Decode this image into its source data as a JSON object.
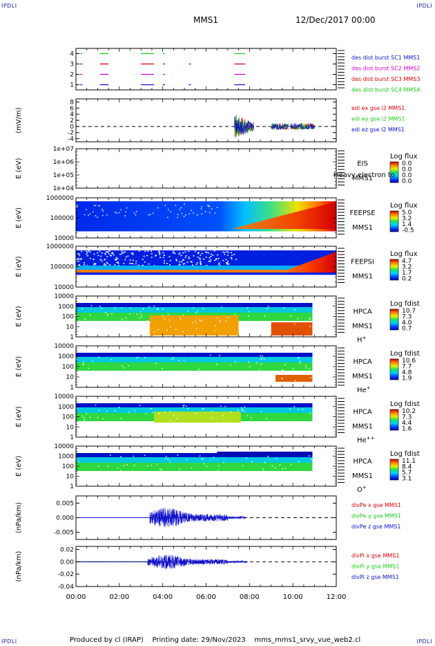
{
  "header": {
    "corner_tl": "IPDLI",
    "corner_tr": "IPDLI",
    "corner_bl": "IPDLI",
    "corner_br": "IPDLI",
    "mission": "MMS1",
    "datetime": "12/Dec/2017 00:00"
  },
  "footer": {
    "produced_by": "Produced by cl (IRAP)",
    "printing_date": "Printing date: 29/Nov/2023",
    "filename": "mms_mms1_srvy_vue_web2.cl"
  },
  "colors": {
    "red": "#d40000",
    "green": "#19c819",
    "blue": "#1010c8",
    "magenta": "#d200d2",
    "black": "#000000"
  },
  "chart_data": [
    {
      "type": "line",
      "panel": "burst",
      "yticks": [
        "4",
        "3",
        "2",
        "1"
      ],
      "ylim": [
        0.5,
        4.5
      ],
      "legend": [
        "des dist burst SC1 MMS1",
        "des dist burst SC2 MMS2",
        "des dist burst SC3 MMS3",
        "des dist burst SC4 MMS4"
      ],
      "legend_colors": [
        "blue",
        "magenta",
        "red",
        "green"
      ],
      "series": [
        {
          "level": 4,
          "color": "green",
          "segments": [
            [
              0.2,
              0.3
            ],
            [
              1.1,
              1.5
            ],
            [
              3.0,
              3.6
            ],
            [
              4.0,
              4.1
            ],
            [
              7.3,
              7.8
            ]
          ]
        },
        {
          "level": 3,
          "color": "red",
          "segments": [
            [
              0.2,
              0.3
            ],
            [
              1.1,
              1.5
            ],
            [
              3.0,
              3.6
            ],
            [
              4.0,
              4.1
            ],
            [
              5.2,
              5.3
            ],
            [
              7.3,
              7.8
            ]
          ]
        },
        {
          "level": 2,
          "color": "magenta",
          "segments": [
            [
              0.2,
              0.3
            ],
            [
              1.1,
              1.5
            ],
            [
              3.0,
              3.6
            ],
            [
              4.0,
              4.1
            ],
            [
              7.3,
              7.8
            ]
          ]
        },
        {
          "level": 1,
          "color": "blue",
          "segments": [
            [
              0.2,
              0.3
            ],
            [
              1.1,
              1.5
            ],
            [
              3.0,
              3.6
            ],
            [
              4.0,
              4.1
            ],
            [
              5.2,
              5.3
            ],
            [
              7.3,
              7.8
            ]
          ]
        }
      ]
    },
    {
      "type": "line",
      "panel": "edi",
      "ylabel": "(mV/m)",
      "yticks": [
        "8",
        "6",
        "4",
        "2",
        "0",
        "-2",
        "-4"
      ],
      "ylim": [
        -5,
        9
      ],
      "legend": [
        "edi ex gse l2 MMS1",
        "edi ey gse l2 MMS1",
        "edi ez gse l2 MMS1"
      ],
      "legend_colors": [
        "red",
        "green",
        "blue"
      ],
      "zero_line": true,
      "active_ranges": [
        [
          7.3,
          8.2
        ],
        [
          9.0,
          9.8
        ],
        [
          9.9,
          11.0
        ]
      ]
    },
    {
      "type": "heatmap",
      "panel": "EIS",
      "ylabel": "E (eV)",
      "yticks": [
        "1e+07",
        "1e+06",
        "1e+05",
        "1e+04"
      ],
      "side_label": "EIS",
      "side_sub": "MMS1",
      "overlay_text": "Heavy electron to",
      "colorbar_title": "Log flux",
      "colorbar_ticks": [
        "0.0",
        "0.0",
        "0.0",
        "0.0"
      ],
      "empty": true
    },
    {
      "type": "heatmap",
      "panel": "FEEPSE",
      "ylabel": "E (eV)",
      "yticks": [
        "1000000",
        "100000",
        "10000"
      ],
      "side_label": "FEEPSE",
      "side_sub": "MMS1",
      "colorbar_title": "Log flux",
      "colorbar_ticks": [
        "5.0",
        "3.2",
        "1.4",
        "-0.5"
      ],
      "data_time_range": [
        0,
        12
      ]
    },
    {
      "type": "heatmap",
      "panel": "FEEPSI",
      "ylabel": "E (eV)",
      "yticks": [
        "1000000",
        "100000",
        "10000"
      ],
      "side_label": "FEEPSI",
      "side_sub": "MMS1",
      "colorbar_title": "Log flux",
      "colorbar_ticks": [
        "4.7",
        "3.2",
        "1.7",
        "0.2"
      ],
      "data_time_range": [
        0,
        12
      ]
    },
    {
      "type": "heatmap",
      "panel": "HPCA H+",
      "ylabel": "E (eV)",
      "yticks": [
        "10000",
        "1000",
        "100",
        "10",
        "1"
      ],
      "side_label": "HPCA",
      "side_sub": "MMS1",
      "species": "H",
      "species_sup": "+",
      "colorbar_title": "Log fdist",
      "colorbar_ticks": [
        "10.7",
        "7.3",
        "4.0",
        "0.7"
      ],
      "data_time_range": [
        0,
        10.9
      ]
    },
    {
      "type": "heatmap",
      "panel": "HPCA He+",
      "ylabel": "E (eV)",
      "yticks": [
        "10000",
        "1000",
        "100",
        "10",
        "1"
      ],
      "side_label": "HPCA",
      "side_sub": "MMS1",
      "species": "He",
      "species_sup": "+",
      "colorbar_title": "Log fdist",
      "colorbar_ticks": [
        "10.6",
        "7.7",
        "4.8",
        "1.9"
      ],
      "data_time_range": [
        0,
        10.9
      ]
    },
    {
      "type": "heatmap",
      "panel": "HPCA He++",
      "ylabel": "E (eV)",
      "yticks": [
        "10000",
        "1000",
        "100",
        "10",
        "1"
      ],
      "side_label": "HPCA",
      "side_sub": "MMS1",
      "species": "He",
      "species_sup": "++",
      "colorbar_title": "Log fdist",
      "colorbar_ticks": [
        "10.2",
        "7.3",
        "4.4",
        "1.6"
      ],
      "data_time_range": [
        0,
        10.9
      ]
    },
    {
      "type": "heatmap",
      "panel": "HPCA O+",
      "ylabel": "E (eV)",
      "yticks": [
        "10000",
        "1000",
        "100",
        "10",
        "1"
      ],
      "side_label": "HPCA",
      "side_sub": "MMS1",
      "species": "O",
      "species_sup": "+",
      "colorbar_title": "Log fdist",
      "colorbar_ticks": [
        "11.1",
        "8.4",
        "5.7",
        "3.1"
      ],
      "data_time_range": [
        0,
        10.9
      ]
    },
    {
      "type": "line",
      "panel": "divPe",
      "ylabel": "(nPa/km)",
      "yticks": [
        "0.005",
        "0.000",
        "-0.005"
      ],
      "ylim": [
        -0.0075,
        0.0075
      ],
      "legend": [
        "divPe x gse MMS1",
        "divPe y gse MMS1",
        "divPe z gse MMS1"
      ],
      "legend_colors": [
        "red",
        "green",
        "blue"
      ],
      "zero_line": true,
      "burst_range": [
        3.4,
        7.8
      ],
      "burst_amplitude": 0.0035
    },
    {
      "type": "line",
      "panel": "divPi",
      "ylabel": "(nPa/km)",
      "yticks": [
        "0.02",
        "0.00",
        "-0.02",
        "-0.04"
      ],
      "ylim": [
        -0.04,
        0.025
      ],
      "legend": [
        "divPi x gse MMS1",
        "divPi y gse MMS1",
        "divPi z gse MMS1"
      ],
      "legend_colors": [
        "red",
        "green",
        "blue"
      ],
      "zero_line": true,
      "burst_range": [
        3.3,
        7.9
      ],
      "burst_amplitude": 0.012
    }
  ],
  "xaxis": {
    "ticks": [
      "00:00",
      "02:00",
      "04:00",
      "06:00",
      "08:00",
      "10:00",
      "12:00"
    ],
    "xlim": [
      0,
      12
    ]
  }
}
